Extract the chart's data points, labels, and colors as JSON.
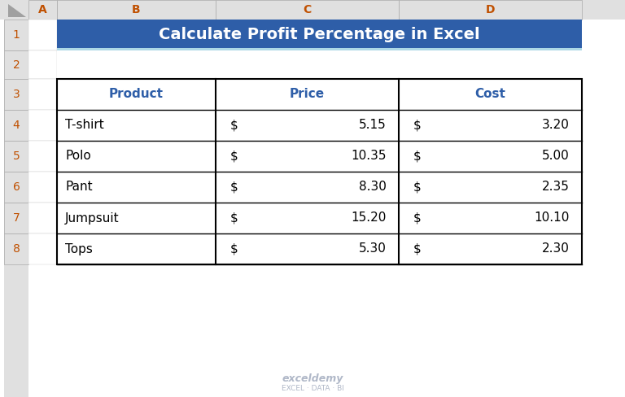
{
  "title": "Calculate Profit Percentage in Excel",
  "title_bg": "#2E5EA8",
  "title_text_color": "#FFFFFF",
  "header_bg": "#C0C0C0",
  "header_text_color": "#2E5EA8",
  "cell_bg": "#FFFFFF",
  "grid_color": "#000000",
  "row_header_bg": "#E0E0E0",
  "col_header_bg": "#E0E0E0",
  "col_header_text_color": "#C05000",
  "columns": [
    "Product",
    "Price",
    "Cost"
  ],
  "products": [
    "T-shirt",
    "Polo",
    "Pant",
    "Jumpsuit",
    "Tops"
  ],
  "prices": [
    5.15,
    10.35,
    8.3,
    15.2,
    5.3
  ],
  "costs": [
    3.2,
    5.0,
    2.35,
    10.1,
    2.3
  ],
  "excel_cols": [
    "A",
    "B",
    "C",
    "D"
  ],
  "excel_rows": [
    "1",
    "2",
    "3",
    "4",
    "5",
    "6",
    "7",
    "8"
  ],
  "watermark_text": "exceldemy",
  "watermark_sub": "EXCEL · DATA · BI"
}
